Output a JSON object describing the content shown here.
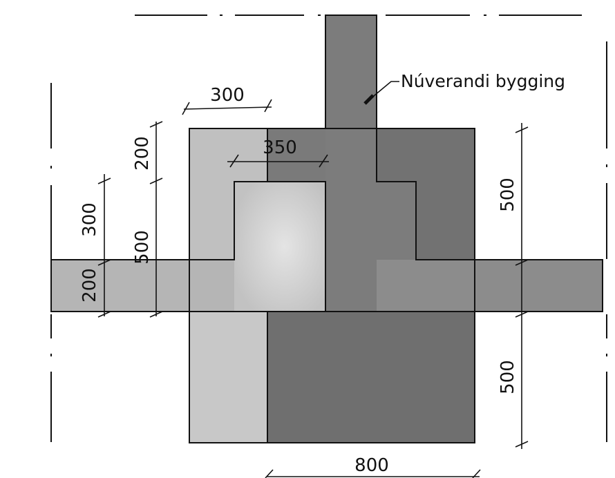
{
  "label": "Núverandi bygging",
  "dimensions": {
    "top_width": "300",
    "inner_width": "350",
    "left_top_height": "200",
    "left_mid_height": "300",
    "left_beam_height": "200",
    "left_full_height": "500",
    "right_upper_height": "500",
    "right_lower_height": "500",
    "bottom_width": "800"
  },
  "colors": {
    "light_gray": "#b9b9b9",
    "lighter_gray": "#d0d0d0",
    "medium_gray": "#8e8e8e",
    "dark_gray": "#6d6d6d",
    "line": "#111111"
  }
}
